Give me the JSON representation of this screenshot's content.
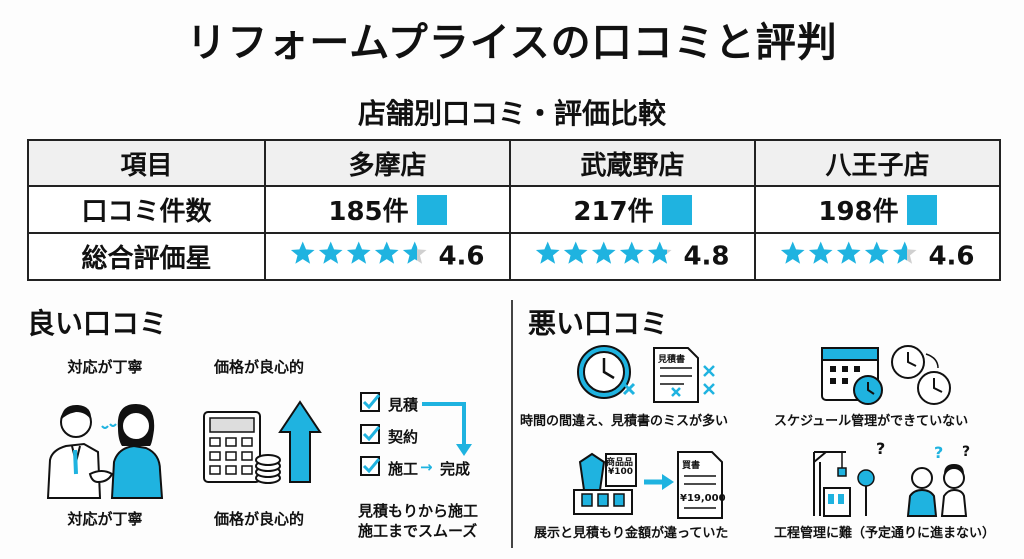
{
  "title": "リフォームプライスの口コミと評判",
  "subtitle": "店舗別口コミ・評価比較",
  "table": {
    "header": [
      "項目",
      "多摩店",
      "武蔵野店",
      "八王子店"
    ],
    "rows": {
      "reviews_label": "口コミ件数",
      "reviews": [
        "185件",
        "217件",
        "198件"
      ],
      "rating_label": "総合評価星",
      "ratings": [
        "4.6",
        "4.8",
        "4.6"
      ]
    }
  },
  "good": {
    "heading": "良い口コミ",
    "politeness_top": "対応が丁寧",
    "politeness_bottom": "対応が丁寧",
    "price_top": "価格が良心的",
    "price_bottom": "価格が良心的",
    "flow": {
      "step1": "見積",
      "step2": "契約",
      "step3": "施工",
      "arrow": "→",
      "done": "完成",
      "caption1": "見積もりから施工",
      "caption2": "施工までスムーズ"
    }
  },
  "bad": {
    "heading": "悪い口コミ",
    "mistakes": "時間の間違え、見積書のミスが多い",
    "schedule": "スケジュール管理ができていない",
    "price_diff": "展示と見積もり金額が違っていた",
    "process": "工程管理に難（予定通りに進まない）",
    "doc_label": "見積書",
    "product_label": "商品品",
    "price_tag": "¥100",
    "estimate_label": "買書",
    "estimate_price": "¥19,000"
  },
  "colors": {
    "accent": "#1fb3e0",
    "star_empty": "#d0d0d0",
    "text": "#111111"
  }
}
